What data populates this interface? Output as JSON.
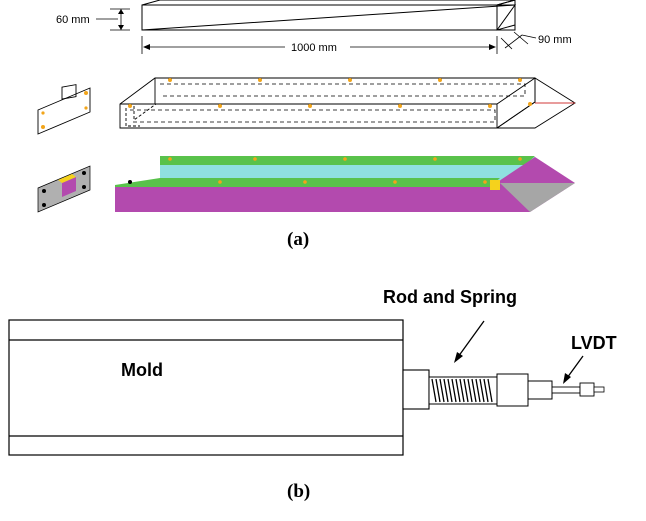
{
  "panel_a": {
    "caption": "(a)",
    "dims": {
      "height": "60 mm",
      "length": "1000 mm",
      "width": "90 mm"
    },
    "colors": {
      "magenta": "#b34aae",
      "cyan": "#8fe0df",
      "green": "#59c24b",
      "gray": "#a6a6a6",
      "orange_dot": "#f2a51a",
      "yellow": "#f5d21c"
    }
  },
  "panel_b": {
    "caption": "(b)",
    "mold_label": "Mold",
    "rod_spring_label": "Rod and Spring",
    "lvdt_label": "LVDT"
  }
}
